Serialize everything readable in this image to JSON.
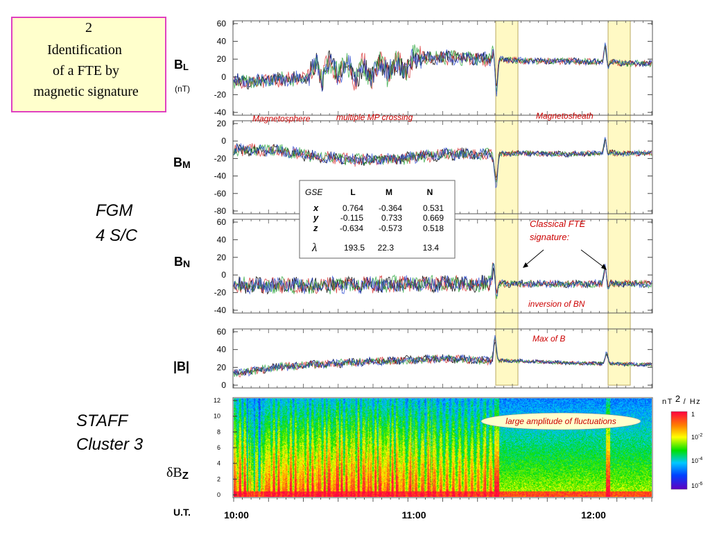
{
  "title_box": {
    "number": "2",
    "line1": "Identification",
    "line2": "of a FTE by",
    "line3": "magnetic signature"
  },
  "labels": {
    "fgm_line1": "FGM",
    "fgm_line2": "4 S/C",
    "staff_line1": "STAFF",
    "staff_line2": "Cluster 3",
    "ut": "U.T."
  },
  "chart_data": [
    {
      "type": "line",
      "panel": "BL",
      "ylabel_main": "B",
      "ylabel_sub": "L",
      "unit": "(nT)",
      "ylim": [
        -40,
        60
      ],
      "yticks": [
        "60",
        "40",
        "20",
        "0",
        "-20",
        "-40"
      ],
      "series_colors": [
        "#000000",
        "#d42020",
        "#20a030",
        "#2040d0"
      ],
      "profile": [
        {
          "x": 0.0,
          "y": -5
        },
        {
          "x": 0.05,
          "y": -5
        },
        {
          "x": 0.1,
          "y": -3
        },
        {
          "x": 0.15,
          "y": -2
        },
        {
          "x": 0.18,
          "y": 0
        },
        {
          "x": 0.2,
          "y": 15
        },
        {
          "x": 0.21,
          "y": -5
        },
        {
          "x": 0.23,
          "y": 20
        },
        {
          "x": 0.25,
          "y": 0
        },
        {
          "x": 0.27,
          "y": 20
        },
        {
          "x": 0.29,
          "y": -5
        },
        {
          "x": 0.31,
          "y": 15
        },
        {
          "x": 0.33,
          "y": -5
        },
        {
          "x": 0.35,
          "y": 20
        },
        {
          "x": 0.37,
          "y": 0
        },
        {
          "x": 0.39,
          "y": 20
        },
        {
          "x": 0.41,
          "y": 5
        },
        {
          "x": 0.43,
          "y": 22
        },
        {
          "x": 0.5,
          "y": 22
        },
        {
          "x": 0.62,
          "y": 20
        },
        {
          "x": 0.7,
          "y": 18
        },
        {
          "x": 0.8,
          "y": 18
        },
        {
          "x": 0.9,
          "y": 16
        },
        {
          "x": 1.0,
          "y": 15
        }
      ],
      "spikes": [
        {
          "x": 0.628,
          "values": [
            32,
            -15,
            20
          ]
        },
        {
          "x": 0.895,
          "values": [
            36,
            8,
            18
          ]
        }
      ],
      "noise": 7,
      "annotations": [
        "Magnetosphere",
        "multiple MP crossing",
        "Magnetosheath"
      ]
    },
    {
      "type": "line",
      "panel": "BM",
      "ylabel_main": "B",
      "ylabel_sub": "M",
      "ylim": [
        -80,
        20
      ],
      "yticks": [
        "20",
        "0",
        "-20",
        "-40",
        "-60",
        "-80"
      ],
      "series_colors": [
        "#000000",
        "#d42020",
        "#20a030",
        "#2040d0"
      ],
      "profile": [
        {
          "x": 0.0,
          "y": -10
        },
        {
          "x": 0.1,
          "y": -10
        },
        {
          "x": 0.2,
          "y": -18
        },
        {
          "x": 0.3,
          "y": -22
        },
        {
          "x": 0.4,
          "y": -20
        },
        {
          "x": 0.5,
          "y": -15
        },
        {
          "x": 0.6,
          "y": -15
        },
        {
          "x": 0.7,
          "y": -14
        },
        {
          "x": 0.8,
          "y": -15
        },
        {
          "x": 0.9,
          "y": -14
        },
        {
          "x": 1.0,
          "y": -14
        }
      ],
      "spikes": [
        {
          "x": 0.628,
          "values": [
            -20,
            -45,
            -15
          ]
        },
        {
          "x": 0.895,
          "values": [
            2,
            -18,
            -12
          ]
        }
      ],
      "noise": 6
    },
    {
      "type": "line",
      "panel": "BN",
      "ylabel_main": "B",
      "ylabel_sub": "N",
      "ylim": [
        -40,
        60
      ],
      "yticks": [
        "60",
        "40",
        "20",
        "0",
        "-20",
        "-40"
      ],
      "series_colors": [
        "#000000",
        "#d42020",
        "#20a030",
        "#2040d0"
      ],
      "profile": [
        {
          "x": 0.0,
          "y": -12
        },
        {
          "x": 0.2,
          "y": -12
        },
        {
          "x": 0.4,
          "y": -10
        },
        {
          "x": 0.6,
          "y": -10
        },
        {
          "x": 0.7,
          "y": -10
        },
        {
          "x": 0.8,
          "y": -10
        },
        {
          "x": 1.0,
          "y": -10
        }
      ],
      "spikes": [
        {
          "x": 0.628,
          "values": [
            14,
            -26,
            -8
          ]
        },
        {
          "x": 0.895,
          "values": [
            10,
            -18,
            -8
          ]
        }
      ],
      "noise": 8,
      "annotations": [
        "Classical  FTE",
        "signature:",
        "inversion of BN"
      ]
    },
    {
      "type": "line",
      "panel": "|B|",
      "ylabel_main": "|B|",
      "ylim": [
        0,
        60
      ],
      "yticks": [
        "60",
        "40",
        "20",
        "0"
      ],
      "series_colors": [
        "#000000",
        "#d42020",
        "#20a030",
        "#2040d0"
      ],
      "profile": [
        {
          "x": 0.0,
          "y": 13
        },
        {
          "x": 0.1,
          "y": 20
        },
        {
          "x": 0.2,
          "y": 23
        },
        {
          "x": 0.3,
          "y": 26
        },
        {
          "x": 0.4,
          "y": 28
        },
        {
          "x": 0.5,
          "y": 30
        },
        {
          "x": 0.6,
          "y": 28
        },
        {
          "x": 0.7,
          "y": 27
        },
        {
          "x": 0.8,
          "y": 25
        },
        {
          "x": 0.9,
          "y": 24
        },
        {
          "x": 1.0,
          "y": 23
        }
      ],
      "spikes": [
        {
          "x": 0.628,
          "values": [
            52,
            26
          ]
        },
        {
          "x": 0.895,
          "values": [
            36,
            24
          ]
        }
      ],
      "noise": 4,
      "annotations": [
        "Max of B"
      ]
    },
    {
      "type": "heatmap",
      "panel": "STAFF dBz",
      "ylabel_main": "δB",
      "ylabel_sub": "Z",
      "ylim": [
        0,
        12
      ],
      "yticks": [
        "12",
        "10",
        "8",
        "6",
        "4",
        "2",
        "0"
      ],
      "xticks": [
        "10:00",
        "11:00",
        "12:00"
      ],
      "colorbar": {
        "unit_prefix": "nT",
        "unit_power": "2",
        "unit_suffix": "/ Hz",
        "max": "1",
        "ticks": [
          {
            "base": "10",
            "exp": "-2"
          },
          {
            "base": "10",
            "exp": "-4"
          },
          {
            "base": "10",
            "exp": "-6"
          }
        ]
      },
      "annotation": "large amplitude of fluctuations"
    }
  ],
  "matrix_table": {
    "headers": [
      "GSE",
      "L",
      "M",
      "N"
    ],
    "rows": [
      {
        "label": "x",
        "values": [
          "0.764",
          "-0.364",
          "0.531"
        ]
      },
      {
        "label": "y",
        "values": [
          "-0.115",
          "0.733",
          "0.669"
        ]
      },
      {
        "label": "z",
        "values": [
          "-0.634",
          "-0.573",
          "0.518"
        ]
      },
      {
        "label": "λ",
        "values": [
          "193.5",
          "22.3",
          "13.4"
        ]
      }
    ]
  }
}
